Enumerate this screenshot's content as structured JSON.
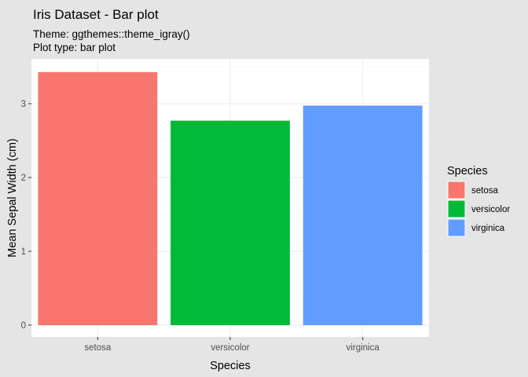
{
  "chart_data": {
    "type": "bar",
    "title": "Iris Dataset - Bar plot",
    "subtitle": [
      "Theme: ggthemes::theme_igray()",
      "Plot type: bar plot"
    ],
    "xlabel": "Species",
    "ylabel": "Mean Sepal Width (cm)",
    "categories": [
      "setosa",
      "versicolor",
      "virginica"
    ],
    "values": [
      3.428,
      2.77,
      2.974
    ],
    "colors": [
      "#F8766D",
      "#00BA38",
      "#619CFF"
    ],
    "ylim": [
      0,
      3.6
    ],
    "yticks": [
      0,
      1,
      2,
      3
    ],
    "grid": true,
    "legend": {
      "title": "Species",
      "position": "right",
      "items": [
        "setosa",
        "versicolor",
        "virginica"
      ]
    }
  }
}
